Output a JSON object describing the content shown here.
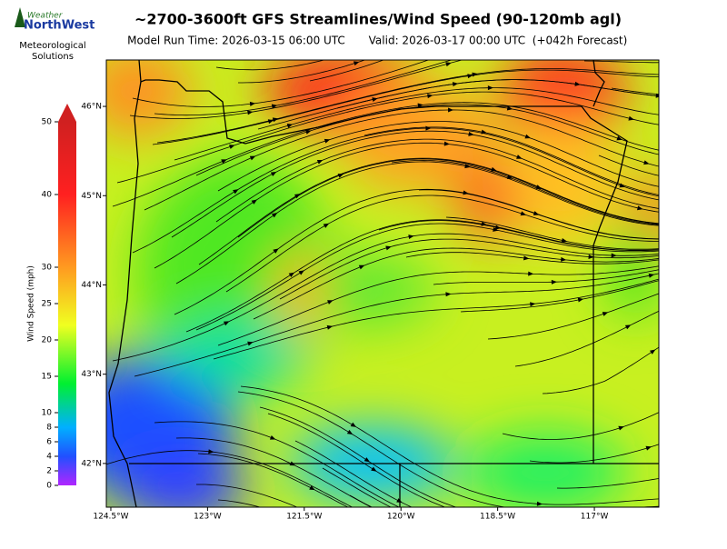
{
  "header": {
    "title": "~2700-3600ft GFS Streamlines/Wind Speed (90-120mb agl)",
    "model_run": "Model Run Time: 2026-03-15 06:00 UTC",
    "valid": "Valid: 2026-03-17 00:00 UTC  (+042h Forecast)"
  },
  "logo": {
    "brand_top": "Weather",
    "brand": "NorthWest",
    "line1": "Meteorological",
    "line2": "Solutions"
  },
  "colorbar": {
    "label": "Wind Speed (mph)",
    "lim": [
      0,
      50
    ],
    "ticks": [
      0,
      2,
      4,
      6,
      8,
      10,
      15,
      20,
      25,
      30,
      40,
      50
    ]
  },
  "map": {
    "xlim": [
      -124.57,
      -116.0
    ],
    "ylim": [
      41.51,
      46.52
    ],
    "xticks": [
      {
        "value": -124.5,
        "label": "124.5°W"
      },
      {
        "value": -123,
        "label": "123°W"
      },
      {
        "value": -121.5,
        "label": "121.5°W"
      },
      {
        "value": -120,
        "label": "120°W"
      },
      {
        "value": -118.5,
        "label": "118.5°W"
      },
      {
        "value": -117,
        "label": "117°W"
      }
    ],
    "yticks": [
      {
        "value": 42,
        "label": "42°N"
      },
      {
        "value": 43,
        "label": "43°N"
      },
      {
        "value": 44,
        "label": "44°N"
      },
      {
        "value": 45,
        "label": "45°N"
      },
      {
        "value": 46,
        "label": "46°N"
      }
    ]
  }
}
